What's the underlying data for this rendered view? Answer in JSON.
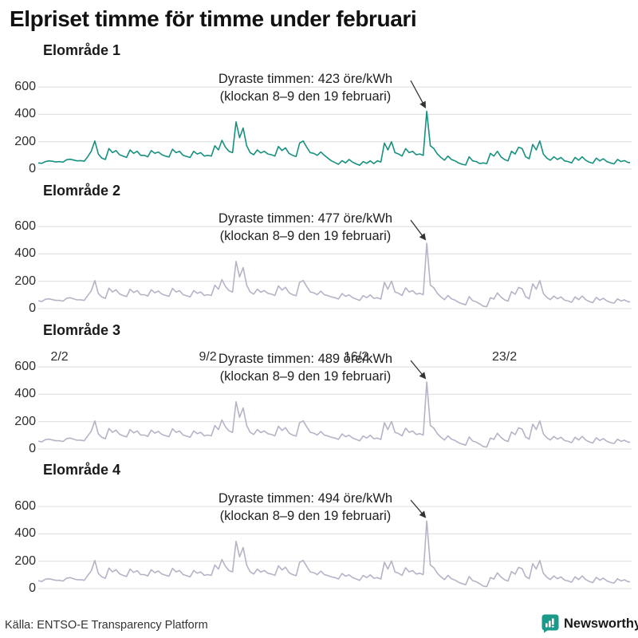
{
  "title": "Elpriset timme för timme under februari",
  "source": "Källa: ENTSO-E Transparency Platform",
  "branding": {
    "name": "Newsworthy",
    "color": "#1b9a89",
    "icon": "bar-chart-badge-icon"
  },
  "colors": {
    "series_area1": "#17917f",
    "series_other": "#b6b3c6",
    "grid": "#dcdcdc",
    "annotation_arrow": "#333333"
  },
  "axes": {
    "y_ticks": [
      0,
      200,
      400,
      600
    ],
    "ylim": [
      0,
      700
    ],
    "x_ticks": [
      "2/2",
      "9/2",
      "16/2",
      "23/2"
    ],
    "unit": "öre/kWh",
    "samples_per_day": 6,
    "days": 28
  },
  "chart_data": [
    {
      "type": "line",
      "region": "Elområde 1",
      "color": "#17917f",
      "peak_index": 110,
      "peak_value": 423,
      "annotation": {
        "line1": "Dyraste timmen: 423 öre/kWh",
        "line2": "(klockan 8–9 den 19 februari)"
      },
      "show_x_axis": false,
      "values": [
        45,
        42,
        55,
        60,
        57,
        52,
        55,
        50,
        68,
        72,
        66,
        60,
        62,
        58,
        90,
        130,
        205,
        110,
        80,
        70,
        150,
        120,
        135,
        105,
        95,
        85,
        140,
        115,
        130,
        100,
        100,
        90,
        135,
        115,
        125,
        105,
        95,
        88,
        145,
        120,
        130,
        100,
        92,
        85,
        130,
        110,
        120,
        95,
        100,
        95,
        170,
        140,
        210,
        160,
        130,
        120,
        345,
        230,
        300,
        170,
        120,
        105,
        140,
        118,
        130,
        110,
        105,
        95,
        165,
        135,
        155,
        115,
        100,
        92,
        190,
        205,
        160,
        120,
        115,
        100,
        125,
        100,
        80,
        60,
        48,
        35,
        62,
        45,
        70,
        50,
        38,
        28,
        55,
        42,
        60,
        40,
        60,
        52,
        190,
        140,
        200,
        120,
        110,
        95,
        150,
        120,
        130,
        105,
        110,
        100,
        423,
        170,
        150,
        110,
        85,
        65,
        95,
        70,
        60,
        45,
        35,
        30,
        90,
        60,
        55,
        40,
        45,
        40,
        115,
        95,
        130,
        90,
        70,
        60,
        130,
        110,
        160,
        150,
        90,
        75,
        180,
        140,
        205,
        110,
        80,
        65,
        90,
        70,
        85,
        60,
        55,
        45,
        85,
        65,
        90,
        65,
        50,
        42,
        80,
        60,
        75,
        55,
        45,
        38,
        70,
        55,
        62,
        48
      ]
    },
    {
      "type": "line",
      "region": "Elområde 2",
      "color": "#b6b3c6",
      "peak_index": 110,
      "peak_value": 477,
      "annotation": {
        "line1": "Dyraste timmen: 477 öre/kWh",
        "line2": "(klockan 8–9 den 19 februari)"
      },
      "show_x_axis": false,
      "values": [
        58,
        52,
        68,
        72,
        66,
        60,
        60,
        55,
        75,
        80,
        72,
        64,
        65,
        60,
        95,
        130,
        205,
        110,
        85,
        75,
        150,
        122,
        138,
        108,
        96,
        88,
        142,
        118,
        132,
        102,
        102,
        92,
        138,
        116,
        128,
        106,
        98,
        90,
        148,
        122,
        132,
        102,
        94,
        86,
        132,
        112,
        122,
        96,
        102,
        96,
        172,
        142,
        212,
        162,
        132,
        122,
        345,
        232,
        300,
        172,
        122,
        106,
        142,
        120,
        132,
        112,
        106,
        96,
        166,
        136,
        156,
        116,
        102,
        94,
        192,
        206,
        162,
        122,
        116,
        102,
        128,
        102,
        95,
        85,
        80,
        70,
        110,
        90,
        100,
        80,
        70,
        60,
        95,
        80,
        100,
        75,
        80,
        70,
        192,
        142,
        202,
        122,
        112,
        96,
        152,
        122,
        132,
        106,
        112,
        102,
        477,
        172,
        152,
        112,
        86,
        66,
        96,
        72,
        62,
        46,
        36,
        28,
        88,
        58,
        50,
        35,
        18,
        14,
        80,
        70,
        115,
        85,
        65,
        55,
        125,
        105,
        155,
        145,
        88,
        72,
        182,
        142,
        205,
        112,
        82,
        66,
        92,
        72,
        86,
        62,
        56,
        46,
        86,
        66,
        92,
        66,
        52,
        44,
        82,
        62,
        76,
        56,
        46,
        40,
        72,
        56,
        64,
        50
      ]
    },
    {
      "type": "line",
      "region": "Elområde 3",
      "color": "#b6b3c6",
      "peak_index": 110,
      "peak_value": 489,
      "annotation": {
        "line1": "Dyraste timmen: 489 öre/kWh",
        "line2": "(klockan 8–9 den 19 februari)"
      },
      "show_x_axis": false,
      "values": [
        58,
        52,
        68,
        72,
        66,
        60,
        60,
        55,
        75,
        80,
        72,
        64,
        65,
        60,
        95,
        130,
        205,
        110,
        85,
        75,
        150,
        122,
        138,
        108,
        96,
        88,
        142,
        118,
        132,
        102,
        102,
        92,
        138,
        116,
        128,
        106,
        98,
        90,
        148,
        122,
        132,
        102,
        94,
        86,
        132,
        112,
        122,
        96,
        102,
        96,
        172,
        142,
        212,
        162,
        132,
        122,
        345,
        232,
        300,
        172,
        122,
        106,
        142,
        120,
        132,
        112,
        106,
        96,
        166,
        136,
        156,
        116,
        102,
        94,
        192,
        206,
        162,
        122,
        116,
        102,
        128,
        102,
        95,
        85,
        80,
        70,
        110,
        90,
        100,
        80,
        70,
        60,
        95,
        80,
        100,
        75,
        80,
        70,
        192,
        142,
        202,
        122,
        112,
        96,
        152,
        122,
        132,
        106,
        112,
        102,
        489,
        172,
        152,
        112,
        86,
        66,
        96,
        72,
        62,
        46,
        36,
        28,
        88,
        58,
        50,
        35,
        18,
        14,
        80,
        70,
        115,
        85,
        65,
        55,
        125,
        105,
        155,
        145,
        88,
        72,
        182,
        142,
        205,
        112,
        82,
        66,
        92,
        72,
        86,
        62,
        56,
        46,
        86,
        66,
        92,
        66,
        52,
        44,
        82,
        62,
        76,
        56,
        46,
        40,
        72,
        56,
        64,
        50
      ]
    },
    {
      "type": "line",
      "region": "Elområde 4",
      "color": "#b6b3c6",
      "peak_index": 110,
      "peak_value": 494,
      "annotation": {
        "line1": "Dyraste timmen: 494 öre/kWh",
        "line2": "(klockan 8–9 den 19 februari)"
      },
      "show_x_axis": true,
      "values": [
        58,
        52,
        68,
        72,
        66,
        60,
        60,
        55,
        75,
        80,
        72,
        64,
        65,
        60,
        95,
        130,
        205,
        110,
        85,
        75,
        150,
        122,
        138,
        108,
        96,
        88,
        142,
        118,
        132,
        102,
        102,
        92,
        138,
        116,
        128,
        106,
        98,
        90,
        148,
        122,
        132,
        102,
        94,
        86,
        132,
        112,
        122,
        96,
        102,
        96,
        172,
        142,
        212,
        162,
        132,
        122,
        345,
        232,
        300,
        172,
        122,
        106,
        142,
        120,
        132,
        112,
        106,
        96,
        166,
        136,
        156,
        116,
        102,
        94,
        192,
        206,
        162,
        122,
        116,
        102,
        128,
        102,
        95,
        85,
        80,
        70,
        110,
        90,
        100,
        80,
        70,
        60,
        95,
        80,
        100,
        75,
        80,
        70,
        192,
        142,
        202,
        122,
        112,
        96,
        152,
        122,
        132,
        106,
        112,
        102,
        494,
        172,
        152,
        112,
        86,
        66,
        96,
        72,
        62,
        46,
        36,
        28,
        88,
        58,
        50,
        35,
        18,
        14,
        80,
        70,
        115,
        85,
        65,
        55,
        125,
        105,
        155,
        145,
        88,
        72,
        182,
        142,
        205,
        112,
        82,
        66,
        92,
        72,
        86,
        62,
        56,
        46,
        86,
        66,
        92,
        66,
        52,
        44,
        82,
        62,
        76,
        56,
        46,
        40,
        72,
        56,
        64,
        50
      ]
    }
  ]
}
